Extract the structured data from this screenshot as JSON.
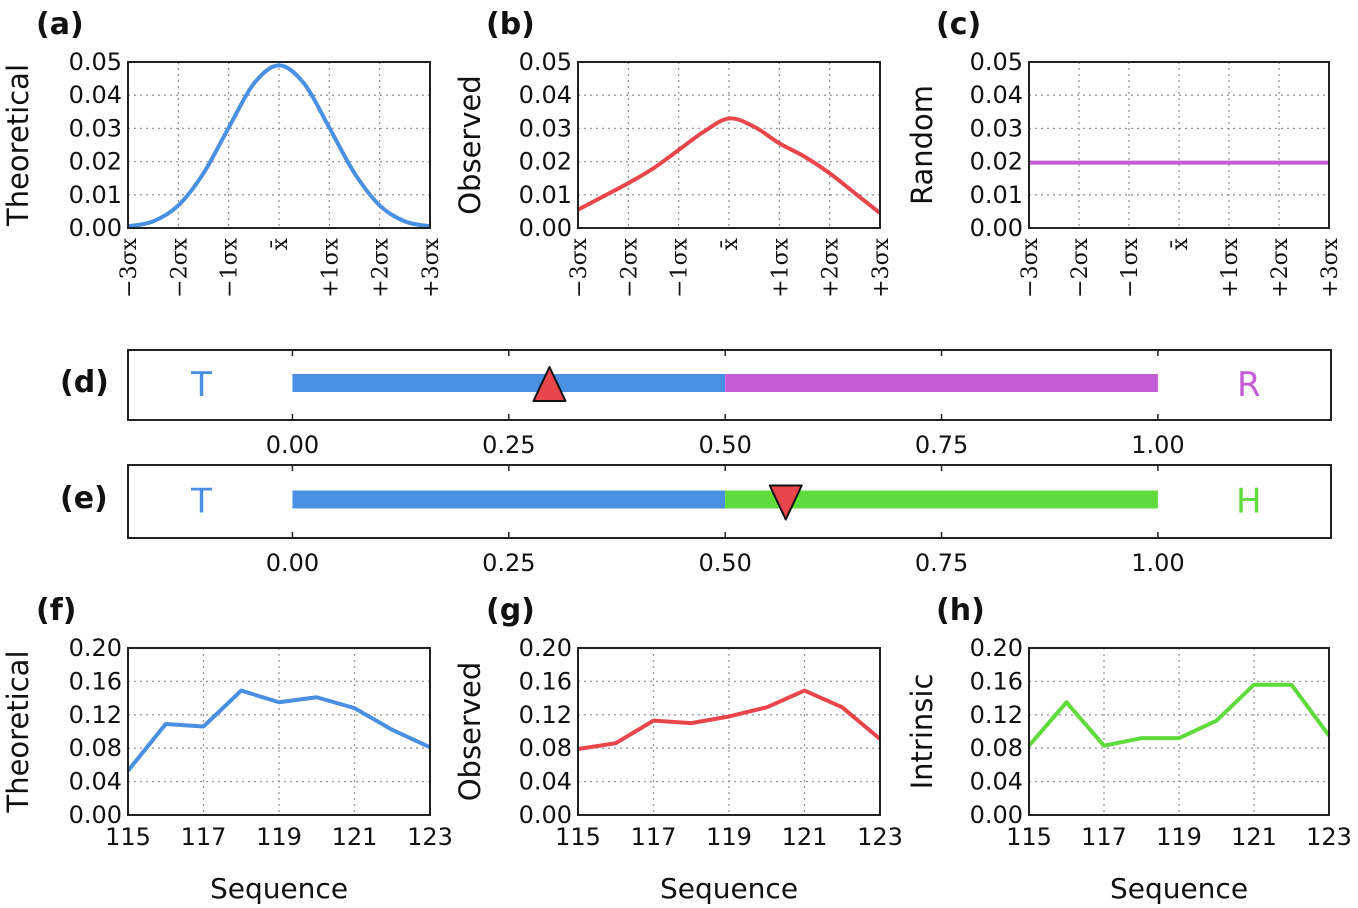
{
  "chart_data": [
    {
      "id": "a",
      "panel_label": "(a)",
      "type": "line",
      "ylabel": "Theoretical",
      "x": [
        -3,
        -2.5,
        -2,
        -1.5,
        -1,
        -0.5,
        0,
        0.5,
        1,
        1.5,
        2,
        2.5,
        3
      ],
      "values": [
        0.0005,
        0.002,
        0.0068,
        0.0165,
        0.0302,
        0.0435,
        0.049,
        0.0435,
        0.0302,
        0.0165,
        0.0068,
        0.002,
        0.0005
      ],
      "xlim": [
        -3,
        3
      ],
      "ylim": [
        0,
        0.05
      ],
      "xtick_values": [
        -3,
        -2,
        -1,
        0,
        1,
        2,
        3
      ],
      "xtick_labels": [
        "−3σx",
        "−2σx",
        "−1σx",
        "x̄",
        "+1σx",
        "+2σx",
        "+3σx"
      ],
      "ytick_values": [
        0,
        0.01,
        0.02,
        0.03,
        0.04,
        0.05
      ],
      "ytick_labels": [
        "0.00",
        "0.01",
        "0.02",
        "0.03",
        "0.04",
        "0.05"
      ],
      "color": "#4a90e2"
    },
    {
      "id": "b",
      "panel_label": "(b)",
      "type": "line",
      "ylabel": "Observed",
      "x": [
        -3,
        -2.5,
        -2,
        -1.5,
        -1,
        -0.5,
        0,
        0.5,
        1,
        1.5,
        2,
        2.5,
        3
      ],
      "values": [
        0.0055,
        0.0095,
        0.0135,
        0.018,
        0.0235,
        0.029,
        0.033,
        0.0305,
        0.0255,
        0.0215,
        0.0165,
        0.0105,
        0.0045
      ],
      "xlim": [
        -3,
        3
      ],
      "ylim": [
        0,
        0.05
      ],
      "xtick_values": [
        -3,
        -2,
        -1,
        0,
        1,
        2,
        3
      ],
      "xtick_labels": [
        "−3σx",
        "−2σx",
        "−1σx",
        "x̄",
        "+1σx",
        "+2σx",
        "+3σx"
      ],
      "ytick_values": [
        0,
        0.01,
        0.02,
        0.03,
        0.04,
        0.05
      ],
      "ytick_labels": [
        "0.00",
        "0.01",
        "0.02",
        "0.03",
        "0.04",
        "0.05"
      ],
      "color": "#e8464b"
    },
    {
      "id": "c",
      "panel_label": "(c)",
      "type": "line",
      "ylabel": "Random",
      "x": [
        -3,
        3
      ],
      "values": [
        0.0197,
        0.0197
      ],
      "xlim": [
        -3,
        3
      ],
      "ylim": [
        0,
        0.05
      ],
      "xtick_values": [
        -3,
        -2,
        -1,
        0,
        1,
        2,
        3
      ],
      "xtick_labels": [
        "−3σx",
        "−2σx",
        "−1σx",
        "x̄",
        "+1σx",
        "+2σx",
        "+3σx"
      ],
      "ytick_values": [
        0,
        0.01,
        0.02,
        0.03,
        0.04,
        0.05
      ],
      "ytick_labels": [
        "0.00",
        "0.01",
        "0.02",
        "0.03",
        "0.04",
        "0.05"
      ],
      "color": "#c45cd6"
    },
    {
      "id": "d",
      "panel_label": "(d)",
      "type": "bar",
      "left_label": "T",
      "right_label": "R",
      "left_color": "#4a90e2",
      "right_color": "#c45cd6",
      "segments": [
        [
          0,
          0.5
        ],
        [
          0.5,
          1.0
        ]
      ],
      "marker_value": 0.297,
      "marker_direction": "up",
      "marker_color": "#e8464b",
      "xlim": [
        -0.19,
        1.2
      ],
      "xtick_values": [
        0,
        0.25,
        0.5,
        0.75,
        1.0
      ],
      "xtick_labels": [
        "0.00",
        "0.25",
        "0.50",
        "0.75",
        "1.00"
      ]
    },
    {
      "id": "e",
      "panel_label": "(e)",
      "type": "bar",
      "left_label": "T",
      "right_label": "H",
      "left_color": "#4a90e2",
      "right_color": "#5fdc3c",
      "segments": [
        [
          0,
          0.5
        ],
        [
          0.5,
          1.0
        ]
      ],
      "marker_value": 0.57,
      "marker_direction": "down",
      "marker_color": "#e8464b",
      "xlim": [
        -0.19,
        1.2
      ],
      "xtick_values": [
        0,
        0.25,
        0.5,
        0.75,
        1.0
      ],
      "xtick_labels": [
        "0.00",
        "0.25",
        "0.50",
        "0.75",
        "1.00"
      ]
    },
    {
      "id": "f",
      "panel_label": "(f)",
      "type": "line",
      "ylabel": "Theoretical",
      "xlabel": "Sequence",
      "x": [
        115,
        116,
        117,
        118,
        119,
        120,
        121,
        122,
        123
      ],
      "values": [
        0.053,
        0.109,
        0.106,
        0.149,
        0.135,
        0.141,
        0.128,
        0.102,
        0.081
      ],
      "xlim": [
        115,
        123
      ],
      "ylim": [
        0,
        0.2
      ],
      "xtick_values": [
        115,
        117,
        119,
        121,
        123
      ],
      "xtick_labels": [
        "115",
        "117",
        "119",
        "121",
        "123"
      ],
      "ytick_values": [
        0,
        0.04,
        0.08,
        0.12,
        0.16,
        0.2
      ],
      "ytick_labels": [
        "0.00",
        "0.04",
        "0.08",
        "0.12",
        "0.16",
        "0.20"
      ],
      "color": "#4a90e2"
    },
    {
      "id": "g",
      "panel_label": "(g)",
      "type": "line",
      "ylabel": "Observed",
      "xlabel": "Sequence",
      "x": [
        115,
        116,
        117,
        118,
        119,
        120,
        121,
        122,
        123
      ],
      "values": [
        0.079,
        0.086,
        0.113,
        0.11,
        0.118,
        0.129,
        0.149,
        0.129,
        0.091
      ],
      "xlim": [
        115,
        123
      ],
      "ylim": [
        0,
        0.2
      ],
      "xtick_values": [
        115,
        117,
        119,
        121,
        123
      ],
      "xtick_labels": [
        "115",
        "117",
        "119",
        "121",
        "123"
      ],
      "ytick_values": [
        0,
        0.04,
        0.08,
        0.12,
        0.16,
        0.2
      ],
      "ytick_labels": [
        "0.00",
        "0.04",
        "0.08",
        "0.12",
        "0.16",
        "0.20"
      ],
      "color": "#e8464b"
    },
    {
      "id": "h",
      "panel_label": "(h)",
      "type": "line",
      "ylabel": "Intrinsic",
      "xlabel": "Sequence",
      "x": [
        115,
        116,
        117,
        118,
        119,
        120,
        121,
        122,
        123
      ],
      "values": [
        0.083,
        0.135,
        0.083,
        0.092,
        0.092,
        0.113,
        0.156,
        0.156,
        0.095
      ],
      "xlim": [
        115,
        123
      ],
      "ylim": [
        0,
        0.2
      ],
      "xtick_values": [
        115,
        117,
        119,
        121,
        123
      ],
      "xtick_labels": [
        "115",
        "117",
        "119",
        "121",
        "123"
      ],
      "ytick_values": [
        0,
        0.04,
        0.08,
        0.12,
        0.16,
        0.2
      ],
      "ytick_labels": [
        "0.00",
        "0.04",
        "0.08",
        "0.12",
        "0.16",
        "0.20"
      ],
      "color": "#5fdc3c"
    }
  ]
}
